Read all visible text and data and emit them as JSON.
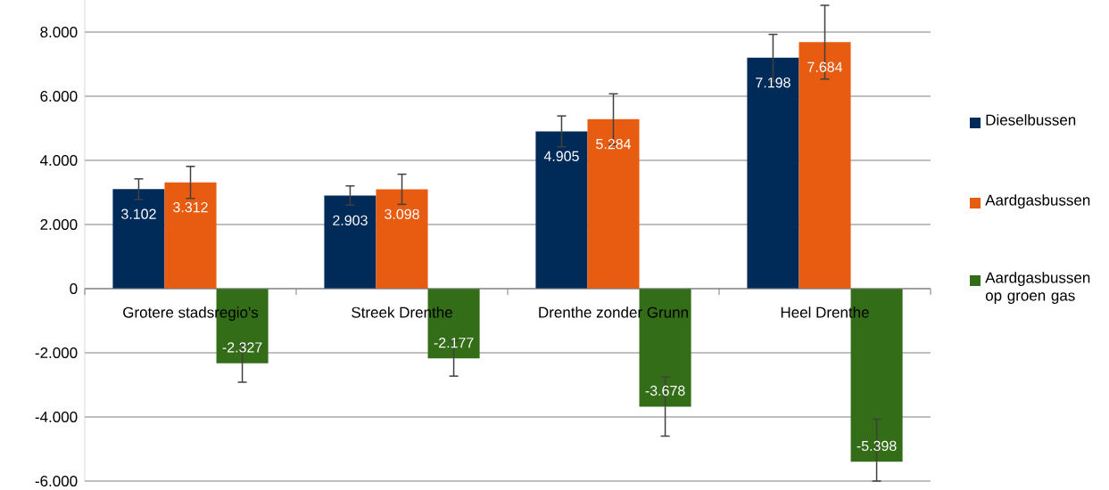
{
  "chart_data": {
    "type": "bar",
    "categories": [
      "Grotere stadsregio's",
      "Streek Drenthe",
      "Drenthe zonder Grunn",
      "Heel Drenthe"
    ],
    "series": [
      {
        "name": "Dieselbussen",
        "color": "#002b58",
        "values": [
          3102,
          2903,
          4905,
          7198
        ],
        "errors": [
          320,
          300,
          480,
          730
        ],
        "value_labels": [
          "3.102",
          "2.903",
          "4.905",
          "7.198"
        ]
      },
      {
        "name": "Aardgasbussen",
        "color": "#e85c12",
        "values": [
          3312,
          3098,
          5284,
          7684
        ],
        "errors": [
          500,
          470,
          790,
          1150
        ],
        "value_labels": [
          "3.312",
          "3.098",
          "5.284",
          "7.684"
        ]
      },
      {
        "name": "Aardgasbussen op groen gas",
        "color": "#336d17",
        "values": [
          -2327,
          -2177,
          -3678,
          -5398
        ],
        "errors": [
          590,
          550,
          920,
          [
            -6000,
            -4070
          ]
        ],
        "value_labels": [
          "-2.327",
          "-2.177",
          "-3.678",
          "-5.398"
        ]
      }
    ],
    "ylim": [
      -6000,
      9000
    ],
    "yticks": [
      {
        "value": -6000,
        "label": "-6.000"
      },
      {
        "value": -4000,
        "label": "-4.000"
      },
      {
        "value": -2000,
        "label": "-2.000"
      },
      0,
      {
        "value": 2000,
        "label": "2.000"
      },
      {
        "value": 4000,
        "label": "4.000"
      },
      {
        "value": 6000,
        "label": "6.000"
      },
      {
        "value": 8000,
        "label": "8.000"
      }
    ],
    "grid": "y",
    "legend": "right"
  }
}
